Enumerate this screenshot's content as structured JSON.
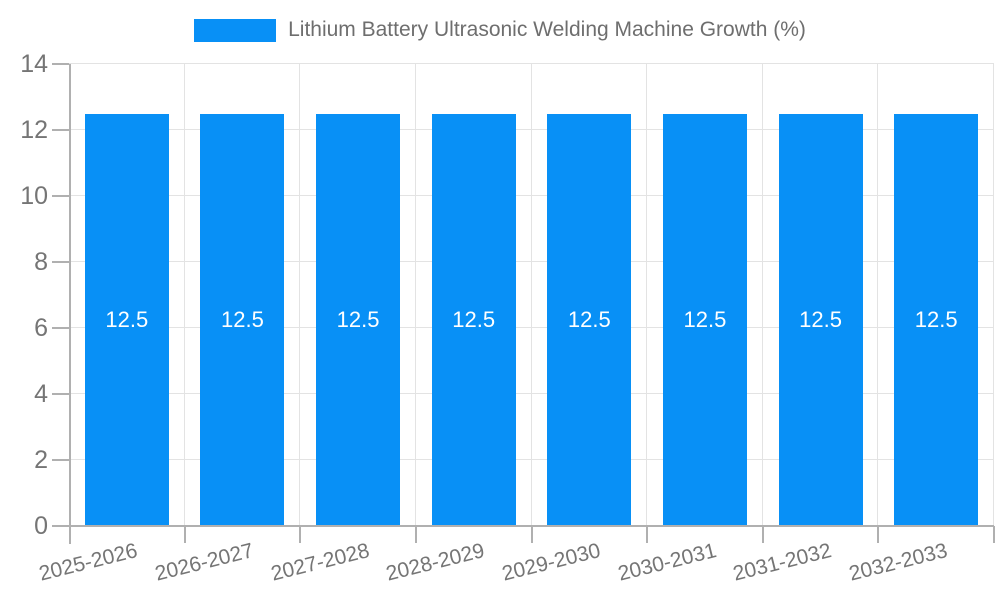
{
  "chart_data": {
    "type": "bar",
    "title": "Lithium Battery Ultrasonic Welding Machine Growth (%)",
    "categories": [
      "2025-2026",
      "2026-2027",
      "2027-2028",
      "2028-2029",
      "2029-2030",
      "2030-2031",
      "2031-2032",
      "2032-2033"
    ],
    "values": [
      12.5,
      12.5,
      12.5,
      12.5,
      12.5,
      12.5,
      12.5,
      12.5
    ],
    "value_labels": [
      "12.5",
      "12.5",
      "12.5",
      "12.5",
      "12.5",
      "12.5",
      "12.5",
      "12.5"
    ],
    "xlabel": "",
    "ylabel": "",
    "ylim": [
      0,
      14
    ],
    "yticks": [
      0,
      2,
      4,
      6,
      8,
      10,
      12,
      14
    ],
    "ytick_labels": [
      "0",
      "2",
      "4",
      "6",
      "8",
      "10",
      "12",
      "14"
    ],
    "grid": true,
    "legend_position": "top",
    "colors": {
      "bar": "#0890F6",
      "grid": "#e3e3e3",
      "axis": "#b0b0b0",
      "text": "#757575",
      "value_label": "#ffffff",
      "background": "#ffffff"
    }
  }
}
